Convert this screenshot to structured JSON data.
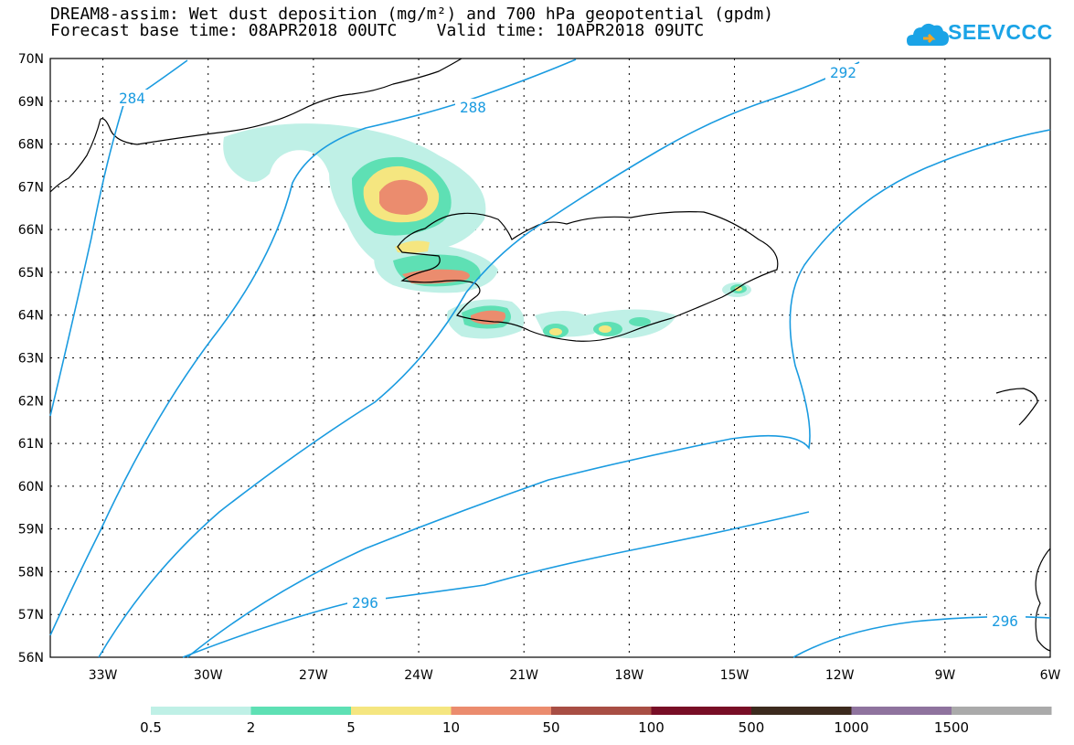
{
  "title": {
    "line1": "DREAM8-assim: Wet dust deposition (mg/m²) and 700 hPa geopotential (gpdm)",
    "line2": "Forecast base time: 08APR2018 00UTC    Valid time: 10APR2018 09UTC"
  },
  "logo": {
    "text": "SEEVCCC",
    "color": "#1aa3e6"
  },
  "map": {
    "lat_labels": [
      "70N",
      "69N",
      "68N",
      "67N",
      "66N",
      "65N",
      "64N",
      "63N",
      "62N",
      "61N",
      "60N",
      "59N",
      "58N",
      "57N",
      "56N"
    ],
    "lon_labels": [
      "33W",
      "30W",
      "27W",
      "24W",
      "21W",
      "18W",
      "15W",
      "12W",
      "9W",
      "6W"
    ]
  },
  "contour_labels": [
    "284",
    "288",
    "292",
    "296",
    "296"
  ],
  "colorbar": {
    "labels": [
      "0.5",
      "2",
      "5",
      "10",
      "50",
      "100",
      "500",
      "1000",
      "1500"
    ],
    "colors": [
      "#bff0e6",
      "#5ee0b4",
      "#f5e680",
      "#eb8c6e",
      "#a84e44",
      "#780e26",
      "#3c2a1e",
      "#8f739e",
      "#aaaaaa"
    ]
  }
}
